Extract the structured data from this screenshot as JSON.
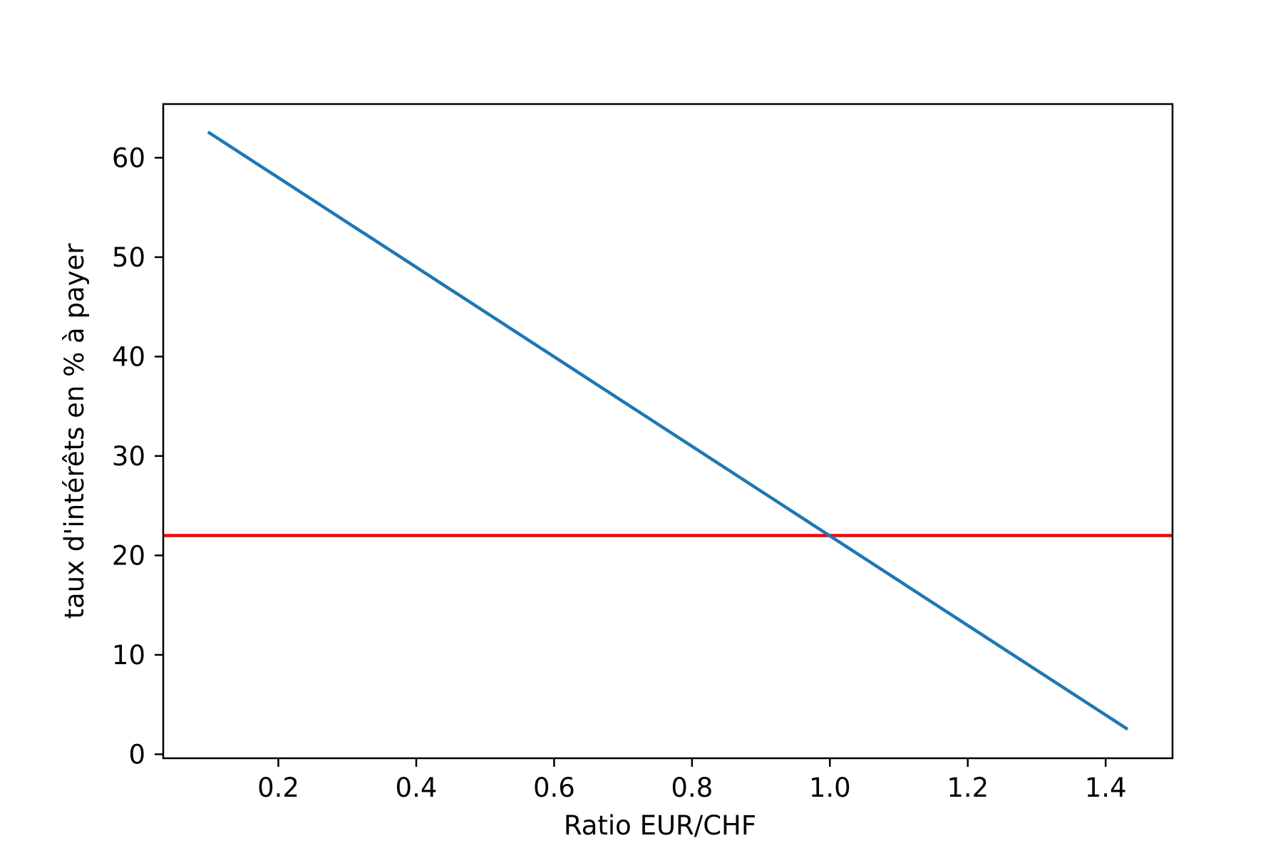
{
  "chart_data": {
    "type": "line",
    "title": "",
    "xlabel": "Ratio EUR/CHF",
    "ylabel": "taux d'intérêts en % à payer",
    "xlim": [
      0.033,
      1.497
    ],
    "ylim": [
      -0.4,
      65.4
    ],
    "x_ticks": [
      0.2,
      0.4,
      0.6,
      0.8,
      1.0,
      1.2,
      1.4
    ],
    "x_tick_labels": [
      "0.2",
      "0.4",
      "0.6",
      "0.8",
      "1.0",
      "1.2",
      "1.4"
    ],
    "y_ticks": [
      0,
      10,
      20,
      30,
      40,
      50,
      60
    ],
    "y_tick_labels": [
      "0",
      "10",
      "20",
      "30",
      "40",
      "50",
      "60"
    ],
    "grid": false,
    "series": [
      {
        "x": [
          0.1,
          1.43
        ],
        "y": [
          62.5,
          2.6
        ],
        "color": "#1f77b4"
      }
    ],
    "hlines": [
      {
        "y": 22,
        "color": "#ff0000"
      }
    ]
  }
}
